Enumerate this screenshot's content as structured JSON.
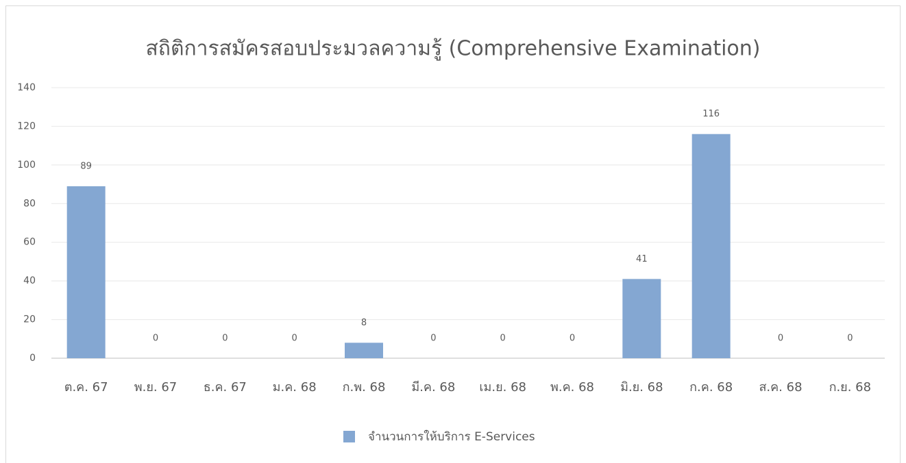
{
  "chart_data": {
    "type": "bar",
    "title": "สถิติการสมัครสอบประมวลความรู้ (Comprehensive Examination)",
    "categories": [
      "ต.ค. 67",
      "พ.ย. 67",
      "ธ.ค. 67",
      "ม.ค. 68",
      "ก.พ. 68",
      "มี.ค. 68",
      "เม.ย. 68",
      "พ.ค. 68",
      "มิ.ย. 68",
      "ก.ค. 68",
      "ส.ค. 68",
      "ก.ย. 68"
    ],
    "series": [
      {
        "name": "จำนวนการให้บริการ E-Services",
        "color": "#84a7d2",
        "values": [
          89,
          0,
          0,
          0,
          8,
          0,
          0,
          0,
          41,
          116,
          0,
          0
        ]
      }
    ],
    "ylim": [
      0,
      140
    ],
    "yticks": [
      0,
      20,
      40,
      60,
      80,
      100,
      120,
      140
    ],
    "grid": true,
    "legend": "bottom"
  }
}
